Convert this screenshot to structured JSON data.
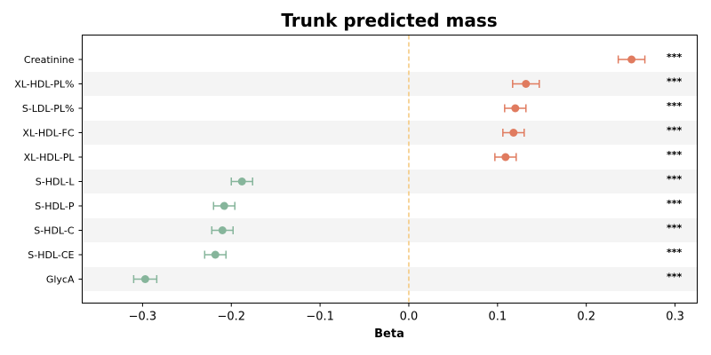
{
  "chart_data": {
    "type": "forest",
    "title": "Trunk predicted mass",
    "xlabel": "Beta",
    "ylabel": "",
    "xlim": [
      -0.368,
      0.325
    ],
    "xticks": [
      -0.3,
      -0.2,
      -0.1,
      0.0,
      0.1,
      0.2,
      0.3
    ],
    "xtick_labels": [
      "−0.3",
      "−0.2",
      "−0.1",
      "0.0",
      "0.1",
      "0.2",
      "0.3"
    ],
    "reference_line": 0.0,
    "colors": {
      "positive": "#e07b5f",
      "negative": "#86b59b",
      "reference_line": "#f4c77a",
      "band": "#f4f4f4"
    },
    "rows": [
      {
        "label": "Creatinine",
        "beta": 0.251,
        "ci_low": 0.236,
        "ci_high": 0.266,
        "significance": "***"
      },
      {
        "label": "XL-HDL-PL%",
        "beta": 0.132,
        "ci_low": 0.117,
        "ci_high": 0.147,
        "significance": "***"
      },
      {
        "label": "S-LDL-PL%",
        "beta": 0.12,
        "ci_low": 0.108,
        "ci_high": 0.132,
        "significance": "***"
      },
      {
        "label": "XL-HDL-FC",
        "beta": 0.118,
        "ci_low": 0.106,
        "ci_high": 0.13,
        "significance": "***"
      },
      {
        "label": "XL-HDL-PL",
        "beta": 0.109,
        "ci_low": 0.097,
        "ci_high": 0.121,
        "significance": "***"
      },
      {
        "label": "S-HDL-L",
        "beta": -0.188,
        "ci_low": -0.2,
        "ci_high": -0.176,
        "significance": "***"
      },
      {
        "label": "S-HDL-P",
        "beta": -0.208,
        "ci_low": -0.22,
        "ci_high": -0.196,
        "significance": "***"
      },
      {
        "label": "S-HDL-C",
        "beta": -0.21,
        "ci_low": -0.222,
        "ci_high": -0.198,
        "significance": "***"
      },
      {
        "label": "S-HDL-CE",
        "beta": -0.218,
        "ci_low": -0.23,
        "ci_high": -0.206,
        "significance": "***"
      },
      {
        "label": "GlycA",
        "beta": -0.297,
        "ci_low": -0.31,
        "ci_high": -0.284,
        "significance": "***"
      }
    ]
  }
}
